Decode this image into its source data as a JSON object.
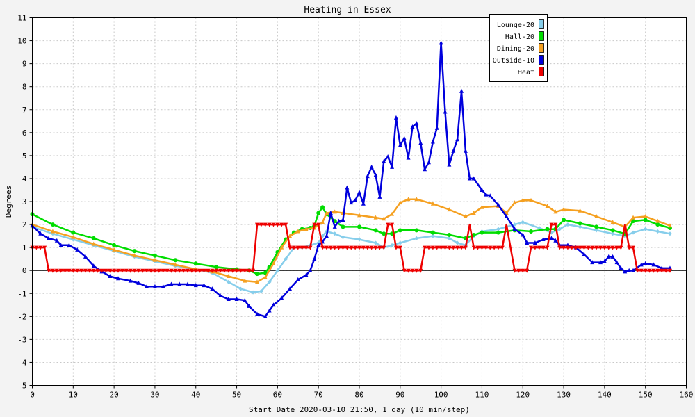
{
  "chart_data": {
    "type": "line",
    "title": "Heating in Essex",
    "xlabel": "Start Date 2020-03-10 21:50, 1 day (10 min/step)",
    "ylabel": "Degrees",
    "xlim": [
      0,
      160
    ],
    "ylim": [
      -5,
      11
    ],
    "xticks": [
      0,
      10,
      20,
      30,
      40,
      50,
      60,
      70,
      80,
      90,
      100,
      110,
      120,
      130,
      140,
      150,
      160
    ],
    "yticks": [
      -5,
      -4,
      -3,
      -2,
      -1,
      0,
      1,
      2,
      3,
      4,
      5,
      6,
      7,
      8,
      9,
      10,
      11
    ],
    "grid": true,
    "zero_line": true,
    "legend_position": "top-right",
    "series": [
      {
        "name": "Lounge-20",
        "color": "#87ceeb",
        "marker": "diamond",
        "points": [
          [
            0,
            1.9
          ],
          [
            5,
            1.6
          ],
          [
            10,
            1.35
          ],
          [
            15,
            1.1
          ],
          [
            20,
            0.85
          ],
          [
            25,
            0.6
          ],
          [
            30,
            0.4
          ],
          [
            35,
            0.2
          ],
          [
            40,
            0.05
          ],
          [
            44,
            -0.1
          ],
          [
            48,
            -0.5
          ],
          [
            51,
            -0.8
          ],
          [
            54,
            -0.95
          ],
          [
            56,
            -0.9
          ],
          [
            58,
            -0.5
          ],
          [
            60,
            0.0
          ],
          [
            62,
            0.5
          ],
          [
            64,
            1.0
          ],
          [
            66,
            1.0
          ],
          [
            68,
            1.1
          ],
          [
            70,
            1.2
          ],
          [
            71,
            1.5
          ],
          [
            72,
            1.7
          ],
          [
            74,
            1.6
          ],
          [
            76,
            1.45
          ],
          [
            80,
            1.35
          ],
          [
            84,
            1.2
          ],
          [
            86,
            1.0
          ],
          [
            88,
            1.1
          ],
          [
            90,
            1.2
          ],
          [
            94,
            1.4
          ],
          [
            98,
            1.5
          ],
          [
            102,
            1.4
          ],
          [
            104,
            1.2
          ],
          [
            106,
            1.1
          ],
          [
            108,
            1.5
          ],
          [
            110,
            1.7
          ],
          [
            114,
            1.8
          ],
          [
            118,
            2.0
          ],
          [
            120,
            2.1
          ],
          [
            124,
            1.85
          ],
          [
            127,
            1.65
          ],
          [
            129,
            1.8
          ],
          [
            131,
            2.0
          ],
          [
            134,
            1.9
          ],
          [
            138,
            1.75
          ],
          [
            142,
            1.6
          ],
          [
            145,
            1.5
          ],
          [
            147,
            1.65
          ],
          [
            150,
            1.8
          ],
          [
            153,
            1.7
          ],
          [
            156,
            1.6
          ]
        ]
      },
      {
        "name": "Hall-20",
        "color": "#00dd00",
        "marker": "circle",
        "points": [
          [
            0,
            2.45
          ],
          [
            5,
            2.0
          ],
          [
            10,
            1.65
          ],
          [
            15,
            1.4
          ],
          [
            20,
            1.1
          ],
          [
            25,
            0.85
          ],
          [
            30,
            0.65
          ],
          [
            35,
            0.45
          ],
          [
            40,
            0.3
          ],
          [
            45,
            0.15
          ],
          [
            50,
            0.05
          ],
          [
            53,
            0.0
          ],
          [
            55,
            -0.15
          ],
          [
            57,
            -0.1
          ],
          [
            58,
            0.15
          ],
          [
            60,
            0.8
          ],
          [
            62,
            1.35
          ],
          [
            64,
            1.65
          ],
          [
            66,
            1.8
          ],
          [
            68,
            1.85
          ],
          [
            69,
            1.95
          ],
          [
            70,
            2.5
          ],
          [
            71,
            2.75
          ],
          [
            72,
            2.45
          ],
          [
            74,
            2.15
          ],
          [
            76,
            1.9
          ],
          [
            80,
            1.9
          ],
          [
            84,
            1.75
          ],
          [
            86,
            1.6
          ],
          [
            88,
            1.6
          ],
          [
            90,
            1.75
          ],
          [
            94,
            1.75
          ],
          [
            98,
            1.65
          ],
          [
            102,
            1.55
          ],
          [
            106,
            1.4
          ],
          [
            108,
            1.55
          ],
          [
            110,
            1.65
          ],
          [
            114,
            1.65
          ],
          [
            118,
            1.75
          ],
          [
            122,
            1.7
          ],
          [
            126,
            1.8
          ],
          [
            128,
            1.8
          ],
          [
            130,
            2.2
          ],
          [
            134,
            2.05
          ],
          [
            138,
            1.9
          ],
          [
            142,
            1.75
          ],
          [
            145,
            1.6
          ],
          [
            147,
            2.15
          ],
          [
            150,
            2.2
          ],
          [
            153,
            2.0
          ],
          [
            156,
            1.85
          ]
        ]
      },
      {
        "name": "Dining-20",
        "color": "#f5a020",
        "marker": "triangle",
        "points": [
          [
            0,
            2.0
          ],
          [
            5,
            1.7
          ],
          [
            10,
            1.45
          ],
          [
            15,
            1.15
          ],
          [
            20,
            0.9
          ],
          [
            25,
            0.65
          ],
          [
            30,
            0.45
          ],
          [
            35,
            0.25
          ],
          [
            40,
            0.05
          ],
          [
            44,
            -0.05
          ],
          [
            48,
            -0.25
          ],
          [
            52,
            -0.45
          ],
          [
            55,
            -0.5
          ],
          [
            57,
            -0.3
          ],
          [
            59,
            0.3
          ],
          [
            61,
            1.0
          ],
          [
            63,
            1.5
          ],
          [
            65,
            1.7
          ],
          [
            67,
            1.8
          ],
          [
            69,
            1.85
          ],
          [
            71,
            2.1
          ],
          [
            72,
            2.5
          ],
          [
            74,
            2.55
          ],
          [
            76,
            2.5
          ],
          [
            80,
            2.4
          ],
          [
            84,
            2.3
          ],
          [
            86,
            2.25
          ],
          [
            88,
            2.45
          ],
          [
            90,
            2.95
          ],
          [
            92,
            3.1
          ],
          [
            94,
            3.1
          ],
          [
            98,
            2.9
          ],
          [
            102,
            2.65
          ],
          [
            106,
            2.35
          ],
          [
            108,
            2.5
          ],
          [
            110,
            2.75
          ],
          [
            114,
            2.8
          ],
          [
            116,
            2.5
          ],
          [
            118,
            2.95
          ],
          [
            120,
            3.05
          ],
          [
            122,
            3.05
          ],
          [
            126,
            2.8
          ],
          [
            128,
            2.55
          ],
          [
            130,
            2.65
          ],
          [
            134,
            2.6
          ],
          [
            138,
            2.35
          ],
          [
            142,
            2.1
          ],
          [
            145,
            1.9
          ],
          [
            147,
            2.3
          ],
          [
            150,
            2.35
          ],
          [
            153,
            2.15
          ],
          [
            156,
            1.95
          ]
        ]
      },
      {
        "name": "Outside-10",
        "color": "#0000dd",
        "marker": "triangle",
        "points": [
          [
            0,
            1.95
          ],
          [
            2,
            1.6
          ],
          [
            4,
            1.4
          ],
          [
            6,
            1.3
          ],
          [
            7,
            1.1
          ],
          [
            9,
            1.1
          ],
          [
            11,
            0.9
          ],
          [
            13,
            0.6
          ],
          [
            15,
            0.2
          ],
          [
            17,
            -0.05
          ],
          [
            19,
            -0.25
          ],
          [
            21,
            -0.35
          ],
          [
            24,
            -0.45
          ],
          [
            26,
            -0.55
          ],
          [
            28,
            -0.7
          ],
          [
            30,
            -0.7
          ],
          [
            32,
            -0.7
          ],
          [
            34,
            -0.6
          ],
          [
            36,
            -0.6
          ],
          [
            38,
            -0.6
          ],
          [
            40,
            -0.65
          ],
          [
            42,
            -0.65
          ],
          [
            44,
            -0.8
          ],
          [
            46,
            -1.1
          ],
          [
            48,
            -1.25
          ],
          [
            50,
            -1.25
          ],
          [
            52,
            -1.3
          ],
          [
            53,
            -1.55
          ],
          [
            55,
            -1.9
          ],
          [
            57,
            -2.0
          ],
          [
            58,
            -1.75
          ],
          [
            59,
            -1.5
          ],
          [
            61,
            -1.2
          ],
          [
            63,
            -0.8
          ],
          [
            65,
            -0.4
          ],
          [
            67,
            -0.2
          ],
          [
            68,
            0.0
          ],
          [
            69,
            0.5
          ],
          [
            70,
            1.1
          ],
          [
            71,
            1.25
          ],
          [
            72,
            1.5
          ],
          [
            73,
            2.5
          ],
          [
            74,
            1.9
          ],
          [
            75,
            2.15
          ],
          [
            76,
            2.2
          ],
          [
            77,
            3.6
          ],
          [
            78,
            2.95
          ],
          [
            79,
            3.05
          ],
          [
            80,
            3.4
          ],
          [
            81,
            2.9
          ],
          [
            82,
            4.1
          ],
          [
            83,
            4.5
          ],
          [
            84,
            4.15
          ],
          [
            85,
            3.2
          ],
          [
            86,
            4.75
          ],
          [
            87,
            4.95
          ],
          [
            88,
            4.5
          ],
          [
            89,
            6.65
          ],
          [
            90,
            5.45
          ],
          [
            91,
            5.75
          ],
          [
            92,
            4.9
          ],
          [
            93,
            6.25
          ],
          [
            94,
            6.4
          ],
          [
            95,
            5.55
          ],
          [
            96,
            4.4
          ],
          [
            97,
            4.7
          ],
          [
            98,
            5.6
          ],
          [
            99,
            6.2
          ],
          [
            100,
            9.9
          ],
          [
            101,
            6.9
          ],
          [
            102,
            4.6
          ],
          [
            103,
            5.2
          ],
          [
            104,
            5.7
          ],
          [
            105,
            7.8
          ],
          [
            106,
            5.2
          ],
          [
            107,
            4.0
          ],
          [
            108,
            4.0
          ],
          [
            110,
            3.5
          ],
          [
            111,
            3.3
          ],
          [
            112,
            3.25
          ],
          [
            114,
            2.85
          ],
          [
            116,
            2.35
          ],
          [
            118,
            1.8
          ],
          [
            120,
            1.55
          ],
          [
            121,
            1.2
          ],
          [
            123,
            1.2
          ],
          [
            125,
            1.35
          ],
          [
            127,
            1.4
          ],
          [
            128,
            1.3
          ],
          [
            129,
            1.1
          ],
          [
            131,
            1.1
          ],
          [
            133,
            1.0
          ],
          [
            135,
            0.7
          ],
          [
            137,
            0.35
          ],
          [
            139,
            0.35
          ],
          [
            140,
            0.4
          ],
          [
            141,
            0.6
          ],
          [
            142,
            0.6
          ],
          [
            143,
            0.35
          ],
          [
            144,
            0.1
          ],
          [
            145,
            -0.05
          ],
          [
            146,
            0.0
          ],
          [
            147,
            0.0
          ],
          [
            149,
            0.25
          ],
          [
            150,
            0.3
          ],
          [
            152,
            0.25
          ],
          [
            154,
            0.1
          ],
          [
            156,
            0.1
          ]
        ]
      },
      {
        "name": "Heat",
        "color": "#ee0000",
        "marker": "triangle-down",
        "points": [
          [
            0,
            1
          ],
          [
            3,
            1
          ],
          [
            4,
            0
          ],
          [
            54,
            0
          ],
          [
            55,
            2
          ],
          [
            62,
            2
          ],
          [
            63,
            1
          ],
          [
            68,
            1
          ],
          [
            69,
            2
          ],
          [
            70,
            2
          ],
          [
            71,
            1
          ],
          [
            86,
            1
          ],
          [
            87,
            2
          ],
          [
            88,
            2
          ],
          [
            89,
            1
          ],
          [
            90,
            1
          ],
          [
            91,
            0
          ],
          [
            95,
            0
          ],
          [
            96,
            1
          ],
          [
            106,
            1
          ],
          [
            107,
            2
          ],
          [
            108,
            1
          ],
          [
            115,
            1
          ],
          [
            116,
            2
          ],
          [
            117,
            1
          ],
          [
            118,
            0
          ],
          [
            121,
            0
          ],
          [
            122,
            1
          ],
          [
            126,
            1
          ],
          [
            127,
            2
          ],
          [
            128,
            2
          ],
          [
            129,
            1
          ],
          [
            144,
            1
          ],
          [
            145,
            2
          ],
          [
            146,
            1
          ],
          [
            147,
            1
          ],
          [
            148,
            0
          ],
          [
            156,
            0
          ]
        ]
      }
    ]
  }
}
